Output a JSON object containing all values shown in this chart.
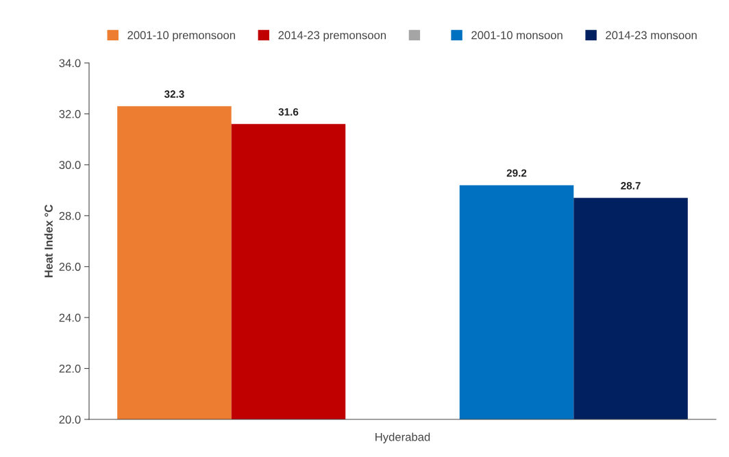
{
  "chart_data": {
    "type": "bar",
    "categories": [
      "Hyderabad"
    ],
    "ylabel": "Heat Index °C",
    "series": [
      {
        "name": "2001-10 premonsoon",
        "color": "#ed7d31",
        "values": [
          32.3
        ]
      },
      {
        "name": "2014-23 premonsoon",
        "color": "#c00000",
        "values": [
          31.6
        ]
      },
      {
        "color": "#a5a5a5",
        "values": [
          null
        ]
      },
      {
        "name": "2001-10 monsoon",
        "color": "#0070c0",
        "values": [
          29.2
        ]
      },
      {
        "name": "2014-23 monsoon",
        "color": "#002060",
        "values": [
          28.7
        ]
      }
    ],
    "ylim": [
      20,
      34
    ],
    "yticks": [
      {
        "value": 20,
        "label": "20.0"
      },
      {
        "value": 22,
        "label": "22.0"
      },
      {
        "value": 24,
        "label": "24.0"
      },
      {
        "value": 26,
        "label": "26.0"
      },
      {
        "value": 28,
        "label": "28.0"
      },
      {
        "value": 30,
        "label": "30.0"
      },
      {
        "value": 32,
        "label": "32.0"
      },
      {
        "value": 34,
        "label": "34.0"
      }
    ],
    "data_labels": true,
    "grid": false,
    "legend": "top"
  }
}
